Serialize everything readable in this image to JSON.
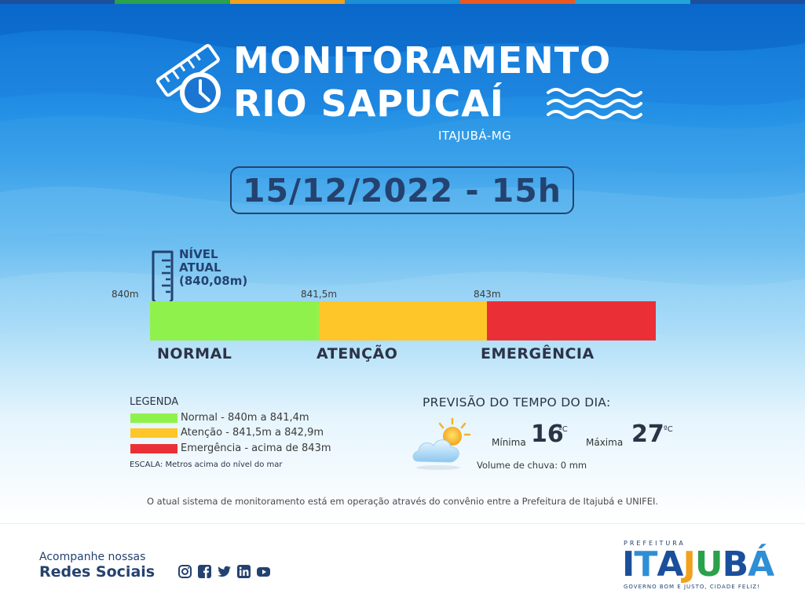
{
  "header": {
    "title_line1": "MONITORAMENTO",
    "title_line2": "RIO SAPUCAÍ",
    "city": "ITAJUBÁ-MG",
    "icons": [
      "ruler-icon",
      "clock-icon",
      "water-waves-icon"
    ]
  },
  "datetime": "15/12/2022 - 15h",
  "gauge": {
    "current_label_line1": "NÍVEL",
    "current_label_line2": "ATUAL",
    "current_value_label": "(840,08m)",
    "current_value_m": 840.08,
    "ticks": [
      "840m",
      "841,5m",
      "843m"
    ],
    "zones": [
      {
        "label": "NORMAL",
        "color": "#8ff24c"
      },
      {
        "label": "ATENÇÃO",
        "color": "#fec629"
      },
      {
        "label": "EMERGÊNCIA",
        "color": "#ea3036"
      }
    ]
  },
  "legend": {
    "title": "LEGENDA",
    "items": [
      {
        "text": "Normal - 840m a 841,4m",
        "color": "#8ff24c"
      },
      {
        "text": "Atenção - 841,5m a 842,9m",
        "color": "#fec629"
      },
      {
        "text": "Emergência - acima de 843m",
        "color": "#ea3036"
      }
    ],
    "scale_note": "ESCALA: Metros acima do nível do mar"
  },
  "weather": {
    "title": "PREVISÃO DO TEMPO DO DIA:",
    "icon": "partly-cloudy-icon",
    "min_label": "Mínima",
    "min_value": "16",
    "max_label": "Máxima",
    "max_value": "27",
    "unit": "ºC",
    "rain": "Volume de chuva: 0 mm"
  },
  "footer_note": "O atual sistema de monitoramento está em operação através do convênio entre a Prefeitura de Itajubá e UNIFEI.",
  "social": {
    "line1": "Acompanhe nossas",
    "line2": "Redes Sociais",
    "icons": [
      "instagram-icon",
      "facebook-icon",
      "twitter-icon",
      "linkedin-icon",
      "youtube-icon"
    ]
  },
  "brand": {
    "top": "PREFEITURA",
    "name_letters": [
      "I",
      "T",
      "A",
      "J",
      "U",
      "B",
      "Á"
    ],
    "slogan": "GOVERNO BOM E JUSTO, CIDADE FELIZ!",
    "letter_colors": [
      "#1b4f9c",
      "#2e8fd6",
      "#1b4f9c",
      "#f2a11f",
      "#2aa14a",
      "#1b4f9c",
      "#2e8fd6"
    ]
  },
  "top_stripe_colors": [
    "#1b4f9c",
    "#2aa14a",
    "#f2a11f",
    "#1b8fd6",
    "#e9591f",
    "#23a3d9",
    "#1b4f9c"
  ]
}
